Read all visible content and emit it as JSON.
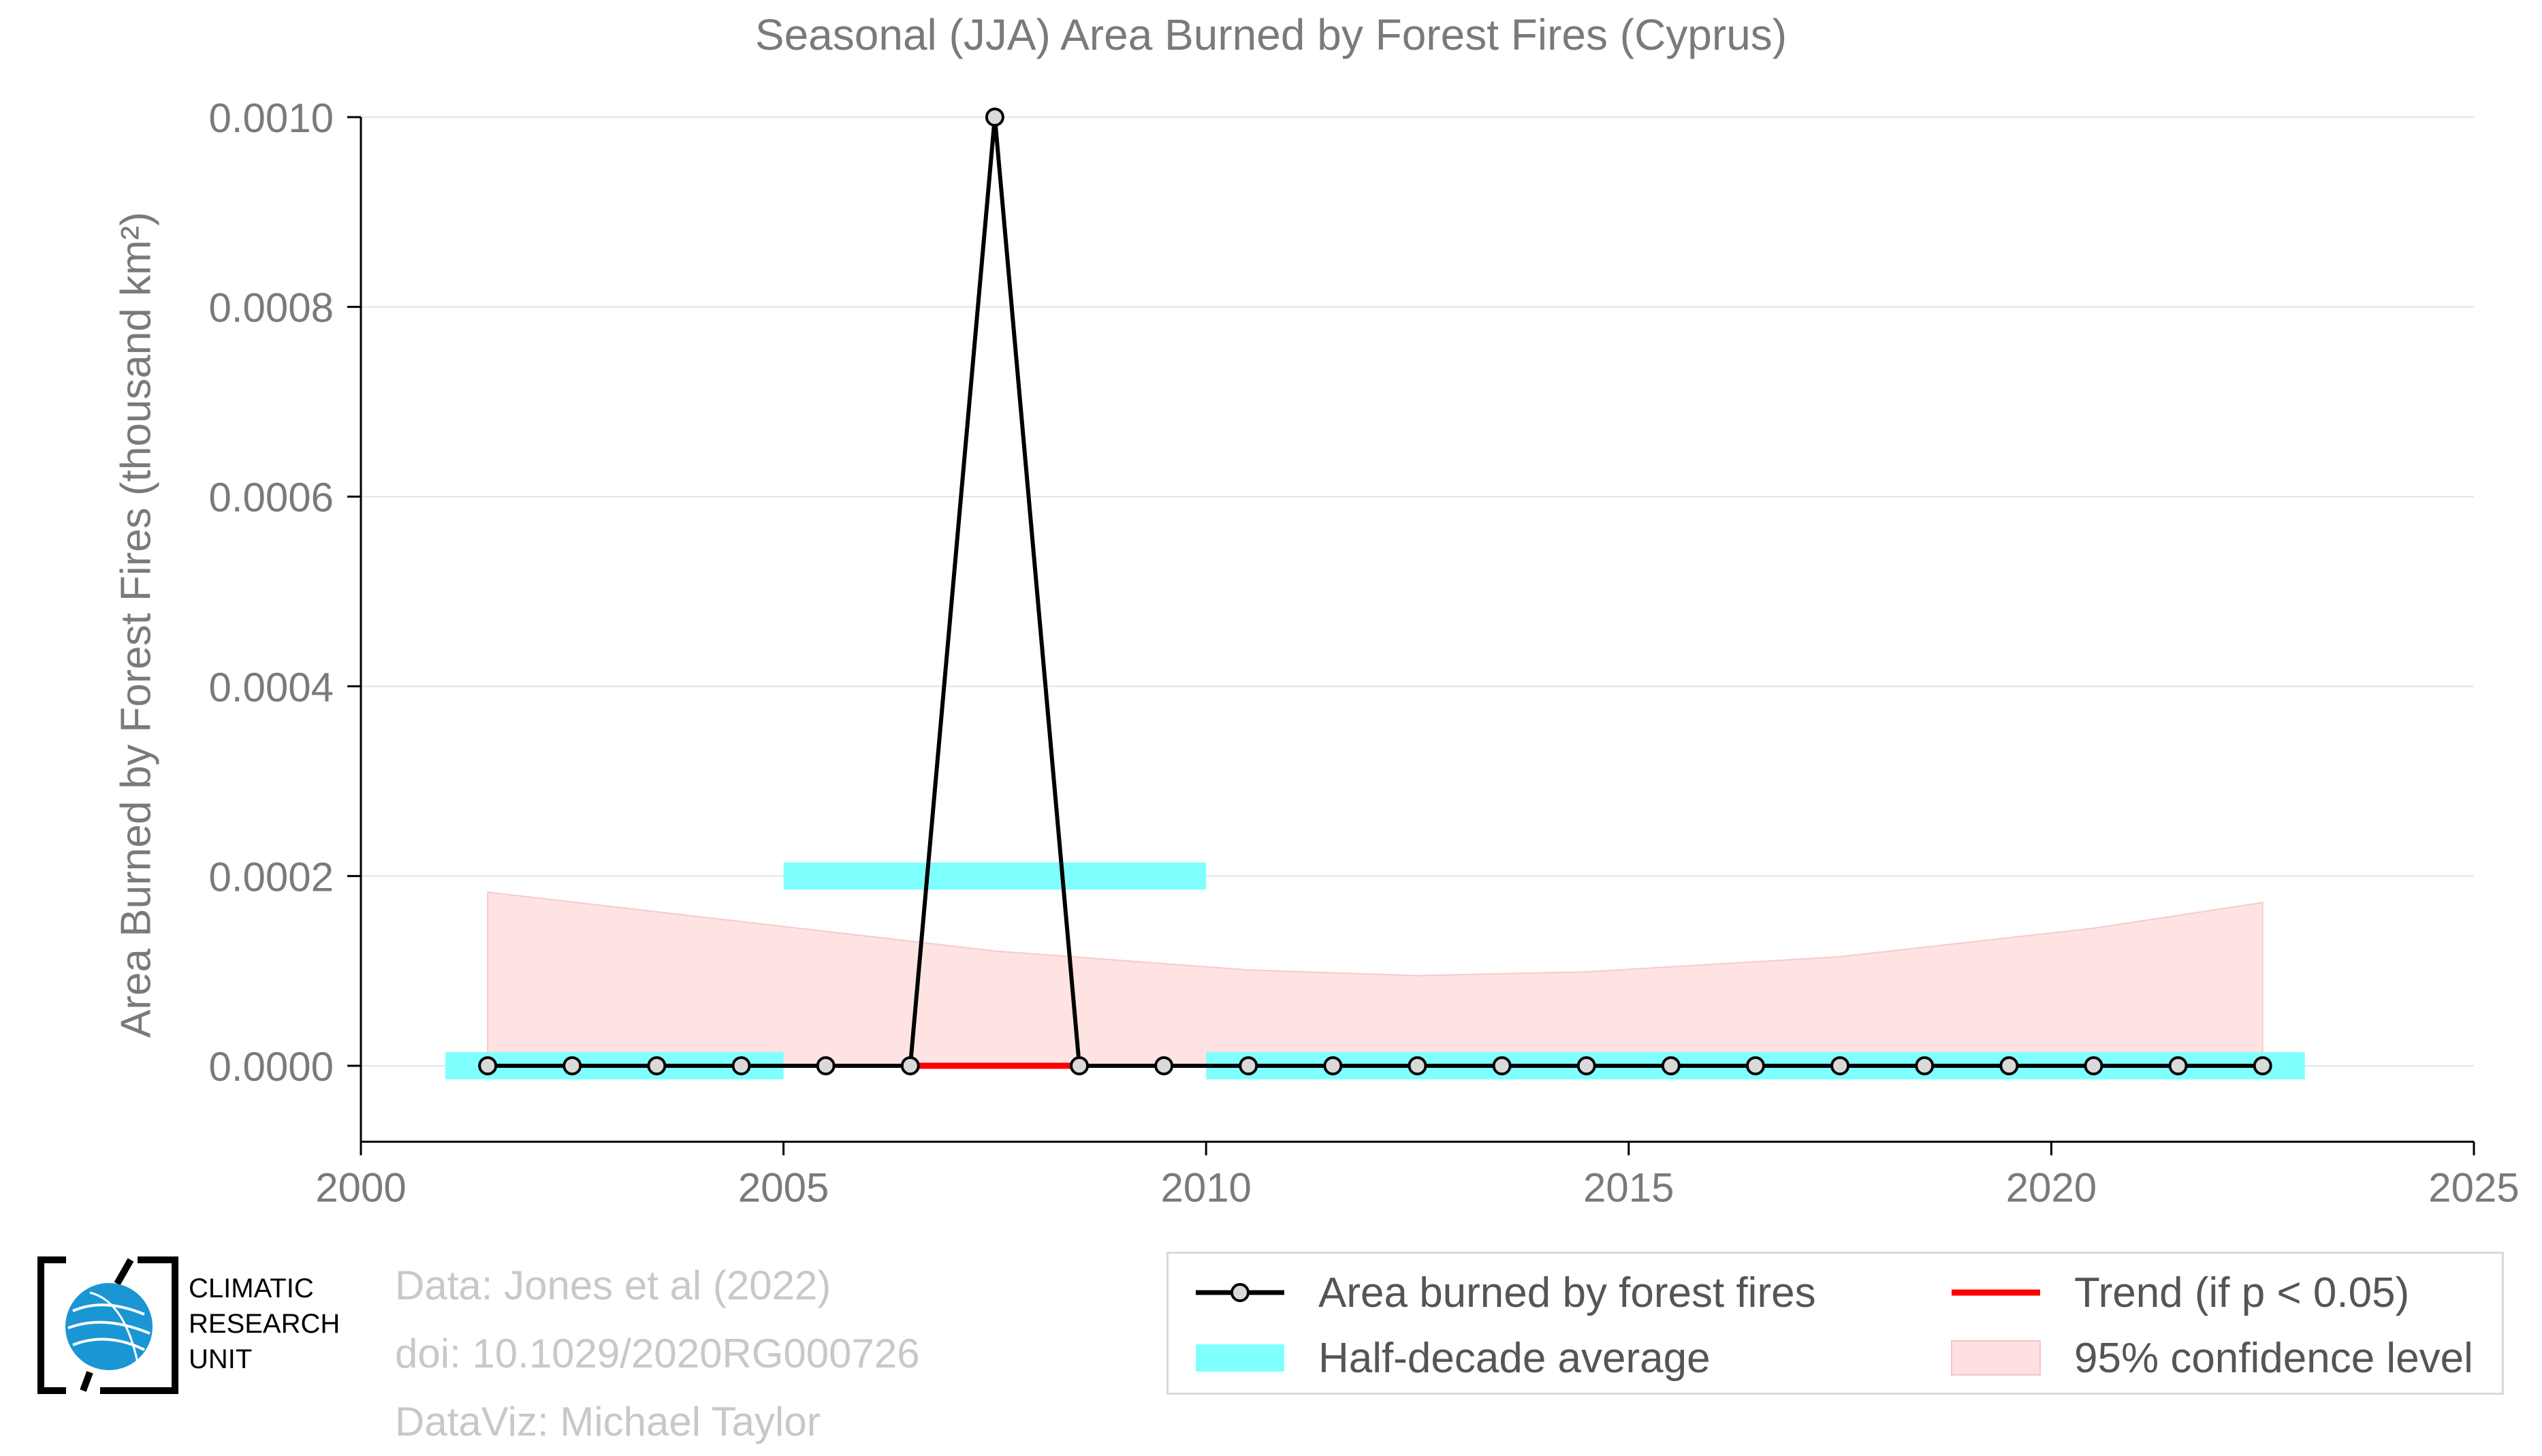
{
  "chart_data": {
    "type": "line",
    "title": "Seasonal (JJA) Area Burned by Forest Fires (Cyprus)",
    "ylabel": "Area Burned by Forest Fires (thousand km²)",
    "xlabel": "",
    "xlim": [
      2000,
      2025
    ],
    "ylim": [
      -8e-05,
      0.001
    ],
    "x_ticks": [
      2000,
      2005,
      2010,
      2015,
      2020,
      2025
    ],
    "y_ticks": [
      0.0,
      0.0002,
      0.0004,
      0.0006,
      0.0008,
      0.001
    ],
    "y_tick_labels": [
      "0.0000",
      "0.0002",
      "0.0004",
      "0.0006",
      "0.0008",
      "0.0010"
    ],
    "grid": "horizontal",
    "legend_position": "bottom-right",
    "series": [
      {
        "name": "Area burned by forest fires",
        "color": "#000000",
        "x": [
          2001.5,
          2002.5,
          2003.5,
          2004.5,
          2005.5,
          2006.5,
          2007.5,
          2008.5,
          2009.5,
          2010.5,
          2011.5,
          2012.5,
          2013.5,
          2014.5,
          2015.5,
          2016.5,
          2017.5,
          2018.5,
          2019.5,
          2020.5,
          2021.5,
          2022.5
        ],
        "values": [
          0,
          0,
          0,
          0,
          0,
          0,
          0.001,
          0,
          0,
          0,
          0,
          0,
          0,
          0,
          0,
          0,
          0,
          0,
          0,
          0,
          0,
          0
        ]
      },
      {
        "name": "Half-decade average",
        "color": "#80ffff",
        "segments": [
          {
            "x_start": 2001,
            "x_end": 2005,
            "value": 0
          },
          {
            "x_start": 2005,
            "x_end": 2010,
            "value": 0.0002
          },
          {
            "x_start": 2010,
            "x_end": 2023,
            "value": 0
          }
        ]
      },
      {
        "name": "Trend (if p < 0.05)",
        "color": "#ff0000",
        "segments": [
          {
            "x_start": 2006.5,
            "x_end": 2008.5,
            "value": 0
          }
        ]
      },
      {
        "name": "95% confidence level",
        "color": "#ffe0e0",
        "x": [
          2001.5,
          2004.5,
          2007.5,
          2010.5,
          2012.5,
          2014.5,
          2017.5,
          2020.5,
          2022.5
        ],
        "lower": [
          0,
          0,
          0,
          0,
          0,
          0,
          0,
          0,
          0
        ],
        "upper": [
          0.000183,
          0.000152,
          0.000121,
          0.000101,
          9.5e-05,
          9.9e-05,
          0.000115,
          0.000145,
          0.000172
        ]
      }
    ]
  },
  "legend": {
    "items": [
      {
        "label": "Area burned by forest fires"
      },
      {
        "label": "Half-decade average"
      },
      {
        "label": "Trend (if p < 0.05)"
      },
      {
        "label": "95% confidence level"
      }
    ]
  },
  "credits": {
    "line1": "Data: Jones et al (2022)",
    "line2": "doi: 10.1029/2020RG000726",
    "line3": "DataViz: Michael Taylor"
  },
  "logo": {
    "line1": "CLIMATIC",
    "line2": "RESEARCH",
    "line3": "UNIT",
    "globe_color": "#1a96d4"
  }
}
